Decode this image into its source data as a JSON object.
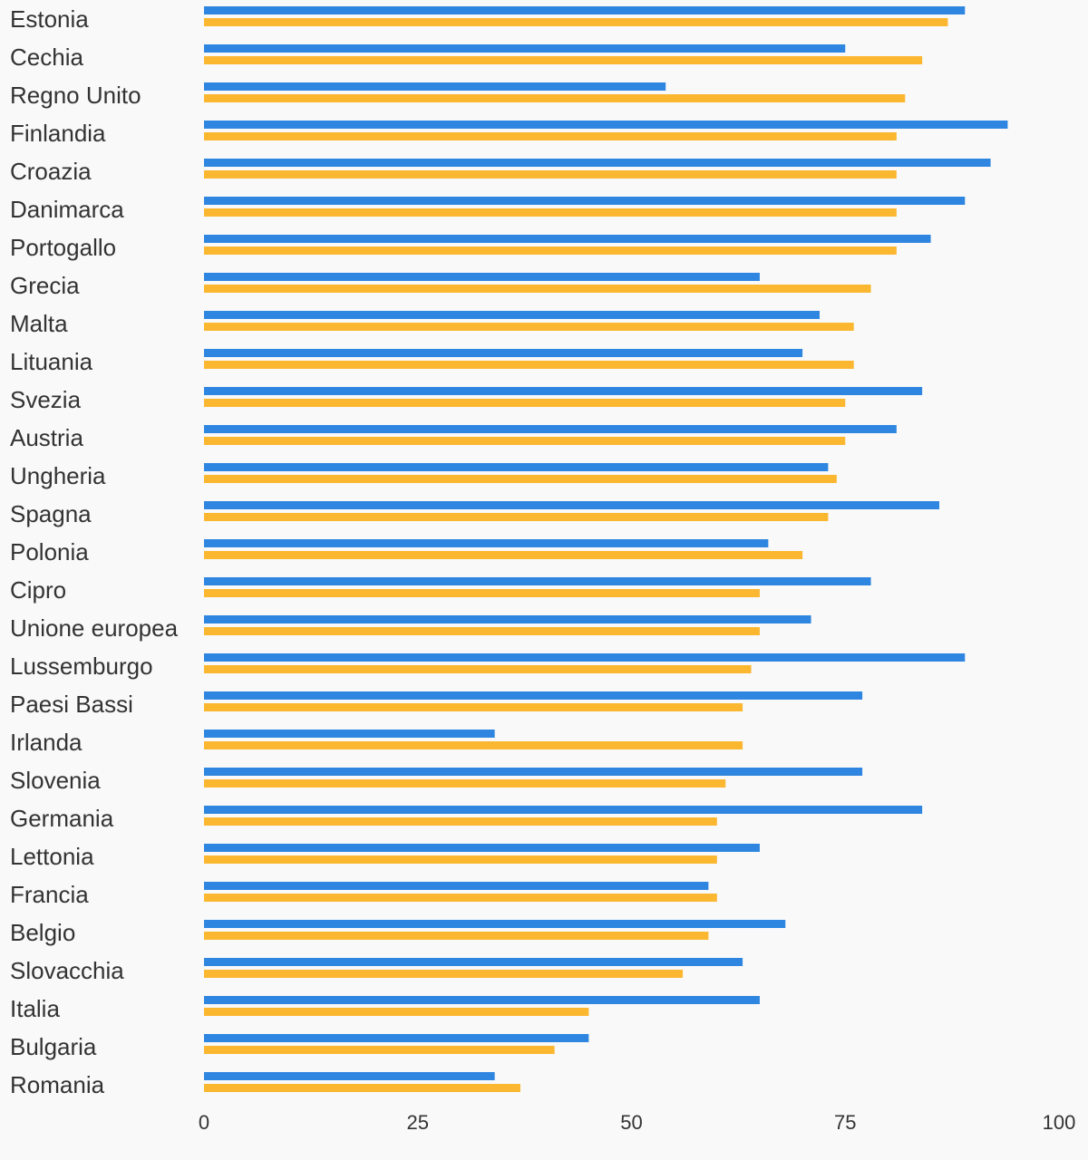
{
  "chart_data": {
    "type": "bar",
    "orientation": "horizontal",
    "title": "",
    "xlabel": "",
    "ylabel": "",
    "xlim": [
      0,
      100
    ],
    "xticks": [
      "0",
      "25",
      "50",
      "75",
      "100"
    ],
    "grid": false,
    "legend": "none",
    "categories": [
      "Estonia",
      "Cechia",
      "Regno Unito",
      "Finlandia",
      "Croazia",
      "Danimarca",
      "Portogallo",
      "Grecia",
      "Malta",
      "Lituania",
      "Svezia",
      "Austria",
      "Ungheria",
      "Spagna",
      "Polonia",
      "Cipro",
      "Unione europea",
      "Lussemburgo",
      "Paesi Bassi",
      "Irlanda",
      "Slovenia",
      "Germania",
      "Lettonia",
      "Francia",
      "Belgio",
      "Slovacchia",
      "Italia",
      "Bulgaria",
      "Romania"
    ],
    "series": [
      {
        "color": "#2f86e0",
        "values": [
          89,
          75,
          54,
          94,
          92,
          89,
          85,
          65,
          72,
          70,
          84,
          81,
          73,
          86,
          66,
          78,
          71,
          89,
          77,
          34,
          77,
          84,
          65,
          59,
          68,
          63,
          65,
          45,
          34
        ]
      },
      {
        "color": "#fbb730",
        "values": [
          87,
          84,
          82,
          81,
          81,
          81,
          81,
          78,
          76,
          76,
          75,
          75,
          74,
          73,
          70,
          65,
          65,
          64,
          63,
          63,
          61,
          60,
          60,
          60,
          59,
          56,
          45,
          41,
          37
        ]
      }
    ]
  }
}
